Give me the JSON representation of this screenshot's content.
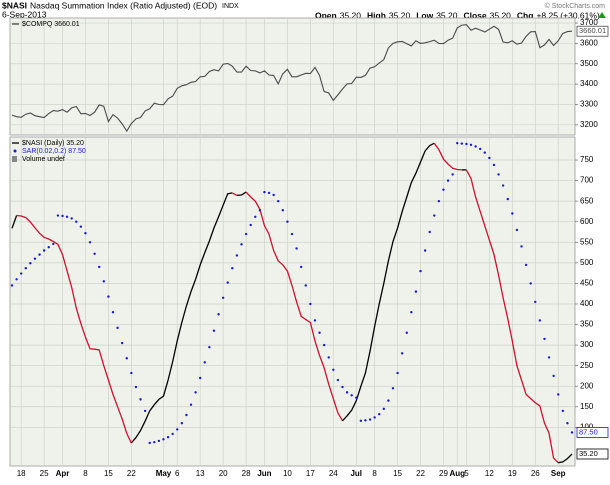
{
  "header": {
    "symbol": "$NASI",
    "description": "Nasdaq Summation Index (Ratio Adjusted) (EOD)",
    "exchange": "INDX",
    "date": "6-Sep-2013",
    "credit": "© StockCharts.com",
    "quote": [
      {
        "label": "Open",
        "value": "35.20"
      },
      {
        "label": "High",
        "value": "35.20"
      },
      {
        "label": "Low",
        "value": "35.20"
      },
      {
        "label": "Close",
        "value": "35.20"
      },
      {
        "label": "Chg",
        "value": "+8.25 (+30.61%)"
      }
    ]
  },
  "chart_data": [
    {
      "type": "line",
      "ylim": [
        3150,
        3725
      ],
      "yticks": [
        3200,
        3300,
        3400,
        3500,
        3600,
        3700
      ],
      "grid": true,
      "series": [
        {
          "name": "$COMPQ 3660.01",
          "color": "#4a4a4a",
          "end_label": "3660.01",
          "values": [
            3248,
            3240,
            3237,
            3252,
            3258,
            3245,
            3240,
            3236,
            3255,
            3270,
            3267,
            3275,
            3262,
            3283,
            3290,
            3254,
            3256,
            3246,
            3262,
            3298,
            3291,
            3216,
            3250,
            3233,
            3204,
            3169,
            3206,
            3229,
            3236,
            3268,
            3279,
            3307,
            3300,
            3299,
            3328,
            3341,
            3379,
            3392,
            3397,
            3409,
            3413,
            3436,
            3438,
            3462,
            3471,
            3465,
            3498,
            3502,
            3488,
            3459,
            3459,
            3488,
            3467,
            3465,
            3455,
            3465,
            3445,
            3443,
            3401,
            3451,
            3473,
            3436,
            3436,
            3445,
            3453,
            3452,
            3482,
            3443,
            3364,
            3357,
            3320,
            3347,
            3376,
            3401,
            3403,
            3434,
            3433,
            3443,
            3479,
            3485,
            3504,
            3520,
            3578,
            3600,
            3608,
            3610,
            3598,
            3588,
            3613,
            3600,
            3603,
            3609,
            3616,
            3600,
            3599,
            3616,
            3626,
            3676,
            3690,
            3692,
            3665,
            3675,
            3666,
            3656,
            3670,
            3684,
            3669,
            3607,
            3603,
            3613,
            3596,
            3602,
            3635,
            3657,
            3658,
            3579,
            3593,
            3620,
            3590,
            3613,
            3649,
            3658,
            3660.01
          ]
        }
      ]
    },
    {
      "type": "line",
      "ylim": [
        6,
        806
      ],
      "yticks": [
        100,
        150,
        200,
        250,
        300,
        350,
        400,
        450,
        500,
        550,
        600,
        650,
        700,
        750
      ],
      "grid": true,
      "volume_legend": "Volume undef",
      "categories": [
        null,
        null,
        "18",
        null,
        null,
        null,
        null,
        "25",
        null,
        null,
        null,
        "Apr",
        null,
        null,
        null,
        null,
        "8",
        null,
        null,
        null,
        null,
        "15",
        null,
        null,
        null,
        null,
        "22",
        null,
        null,
        null,
        null,
        null,
        null,
        "May",
        null,
        null,
        "6",
        null,
        null,
        null,
        null,
        "13",
        null,
        null,
        null,
        null,
        "20",
        null,
        null,
        null,
        null,
        "28",
        null,
        null,
        null,
        "Jun",
        null,
        null,
        null,
        null,
        "10",
        null,
        null,
        null,
        null,
        "17",
        null,
        null,
        null,
        null,
        "24",
        null,
        null,
        null,
        null,
        "Jul",
        null,
        null,
        null,
        "8",
        null,
        null,
        null,
        null,
        "15",
        null,
        null,
        null,
        null,
        "22",
        null,
        null,
        null,
        null,
        "29",
        null,
        null,
        "Aug",
        null,
        "5",
        null,
        null,
        null,
        null,
        "12",
        null,
        null,
        null,
        null,
        "19",
        null,
        null,
        null,
        null,
        "26",
        null,
        null,
        null,
        null,
        "Sep",
        null,
        null,
        null
      ],
      "series": [
        {
          "name": "$NASI (Daily) 35.20",
          "color": "#000000",
          "down_color": "#cc1133",
          "end_label": "35.20",
          "values": [
            584,
            615,
            614,
            610,
            599,
            585,
            572,
            562,
            558,
            552,
            545,
            520,
            480,
            440,
            390,
            352,
            320,
            291,
            290,
            288,
            250,
            215,
            180,
            150,
            120,
            85,
            62,
            75,
            92,
            115,
            140,
            155,
            168,
            176,
            215,
            260,
            310,
            355,
            395,
            430,
            460,
            495,
            525,
            553,
            585,
            612,
            640,
            668,
            670,
            664,
            665,
            672,
            660,
            650,
            630,
            590,
            570,
            530,
            505,
            495,
            480,
            445,
            405,
            370,
            362,
            355,
            310,
            275,
            245,
            205,
            170,
            135,
            116,
            128,
            142,
            165,
            200,
            232,
            285,
            345,
            400,
            450,
            505,
            552,
            585,
            625,
            660,
            695,
            718,
            745,
            772,
            785,
            791,
            775,
            752,
            740,
            730,
            727,
            726,
            726,
            705,
            660,
            625,
            590,
            555,
            520,
            470,
            415,
            365,
            310,
            250,
            215,
            180,
            170,
            160,
            152,
            110,
            86,
            25,
            14,
            16,
            24,
            35.2
          ]
        },
        {
          "name": "SAR(0.02,0.2) 87.50",
          "color": "#1a1acc",
          "marker": "dot",
          "end_label": "87.50",
          "values": [
            445,
            460,
            474,
            487,
            499,
            510,
            520,
            530,
            538,
            546,
            615,
            614,
            612,
            608,
            600,
            588,
            572,
            550,
            522,
            490,
            455,
            418,
            380,
            342,
            305,
            268,
            232,
            198,
            168,
            140,
            62,
            64,
            67,
            71,
            76,
            84,
            95,
            110,
            130,
            155,
            185,
            220,
            258,
            295,
            335,
            375,
            415,
            452,
            487,
            518,
            545,
            570,
            592,
            612,
            628,
            672,
            670,
            665,
            650,
            628,
            600,
            570,
            535,
            490,
            445,
            400,
            360,
            330,
            300,
            270,
            240,
            215,
            198,
            185,
            178,
            172,
            116,
            117,
            119,
            124,
            132,
            145,
            165,
            195,
            232,
            280,
            330,
            380,
            430,
            480,
            530,
            575,
            615,
            650,
            678,
            700,
            715,
            791,
            790,
            789,
            787,
            783,
            777,
            768,
            755,
            738,
            715,
            688,
            655,
            620,
            580,
            540,
            495,
            450,
            405,
            360,
            315,
            270,
            225,
            180,
            140,
            110,
            87.5
          ]
        }
      ]
    }
  ]
}
